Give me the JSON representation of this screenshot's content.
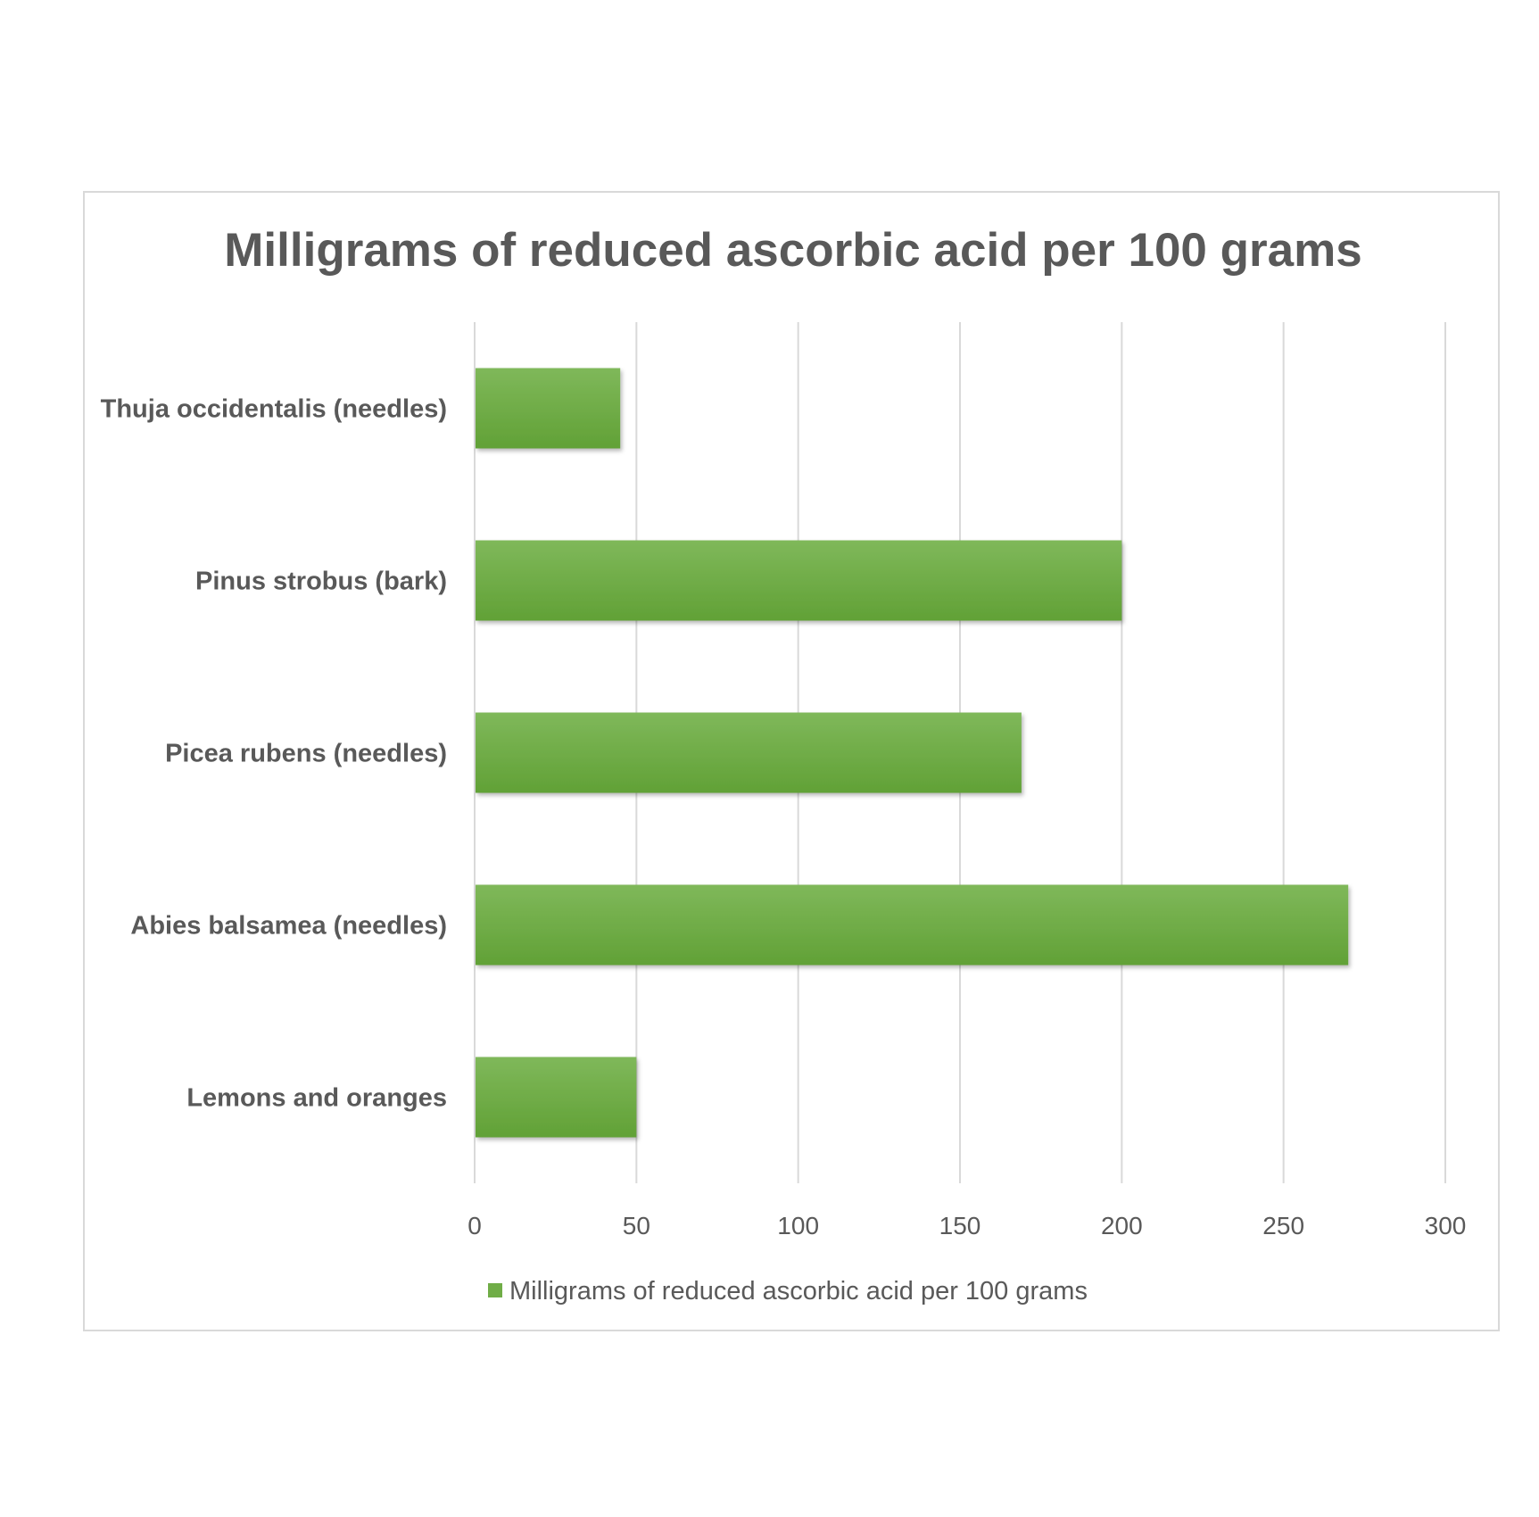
{
  "chart_data": {
    "type": "bar",
    "orientation": "horizontal",
    "title": "Milligrams of reduced ascorbic acid per 100 grams",
    "categories": [
      "Thuja occidentalis (needles)",
      "Pinus strobus (bark)",
      "Picea rubens (needles)",
      "Abies balsamea (needles)",
      "Lemons and oranges"
    ],
    "series": [
      {
        "name": "Milligrams of reduced ascorbic acid per 100 grams",
        "values": [
          45,
          200,
          169,
          270,
          50
        ],
        "color": "#70ad47"
      }
    ],
    "xlim": [
      0,
      300
    ],
    "xticks": [
      "0",
      "50",
      "100",
      "150",
      "200",
      "250",
      "300"
    ],
    "xlabel": "",
    "ylabel": "",
    "grid": true,
    "legend_position": "bottom"
  }
}
